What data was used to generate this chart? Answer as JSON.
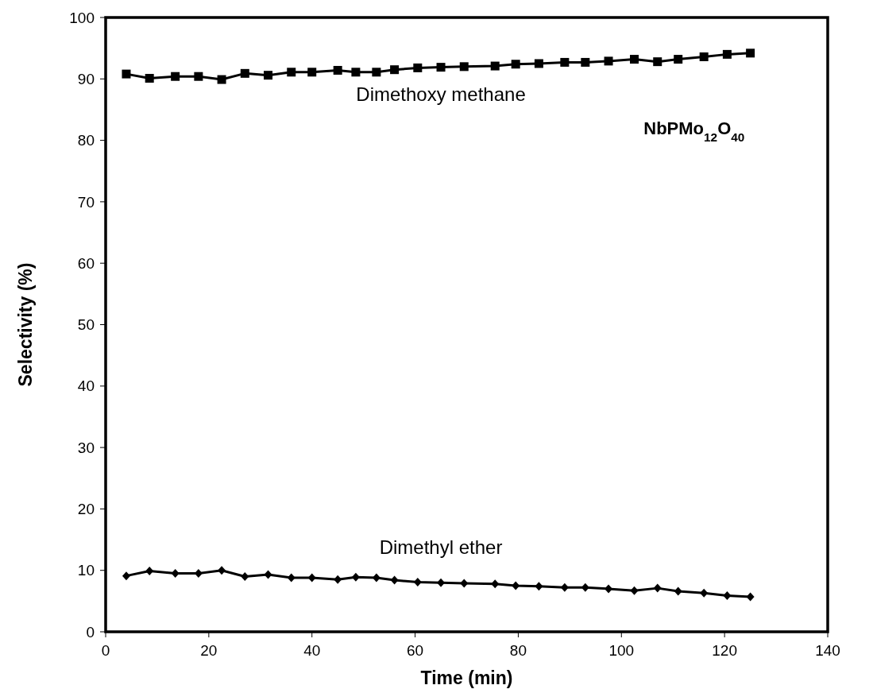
{
  "chart_data": {
    "type": "line",
    "xlabel": "Time (min)",
    "ylabel": "Selectivity (%)",
    "xlim": [
      0,
      140
    ],
    "xticks": [
      0,
      20,
      40,
      60,
      80,
      100,
      120,
      140
    ],
    "ylim": [
      0,
      100
    ],
    "yticks": [
      0,
      10,
      20,
      30,
      40,
      50,
      60,
      70,
      80,
      90,
      100
    ],
    "annotations": [
      "NbPMo$_{12}$O$_{40}$"
    ],
    "x": [
      4,
      8.5,
      13.5,
      18,
      22.5,
      27,
      31.5,
      36,
      40,
      45,
      48.5,
      52.5,
      56,
      60.5,
      65,
      69.5,
      75.5,
      79.5,
      84,
      89,
      93,
      97.5,
      102.5,
      107,
      111,
      116,
      120.5,
      125
    ],
    "series": [
      {
        "name": "Dimethoxy methane",
        "color": "#000000",
        "marker": "square",
        "values": [
          90.8,
          90.1,
          90.4,
          90.4,
          89.9,
          90.9,
          90.6,
          91.1,
          91.1,
          91.4,
          91.1,
          91.1,
          91.5,
          91.8,
          91.9,
          92.0,
          92.1,
          92.4,
          92.5,
          92.7,
          92.7,
          92.9,
          93.2,
          92.8,
          93.2,
          93.6,
          94.0,
          94.2
        ]
      },
      {
        "name": "Dimethyl ether",
        "color": "#000000",
        "marker": "diamond",
        "values": [
          9.1,
          9.9,
          9.5,
          9.5,
          10.0,
          9.0,
          9.3,
          8.8,
          8.8,
          8.5,
          8.9,
          8.8,
          8.4,
          8.1,
          8.0,
          7.9,
          7.8,
          7.5,
          7.4,
          7.2,
          7.2,
          7.0,
          6.7,
          7.1,
          6.6,
          6.3,
          5.9,
          5.7
        ]
      }
    ],
    "grid": false,
    "line_style": "solid"
  }
}
